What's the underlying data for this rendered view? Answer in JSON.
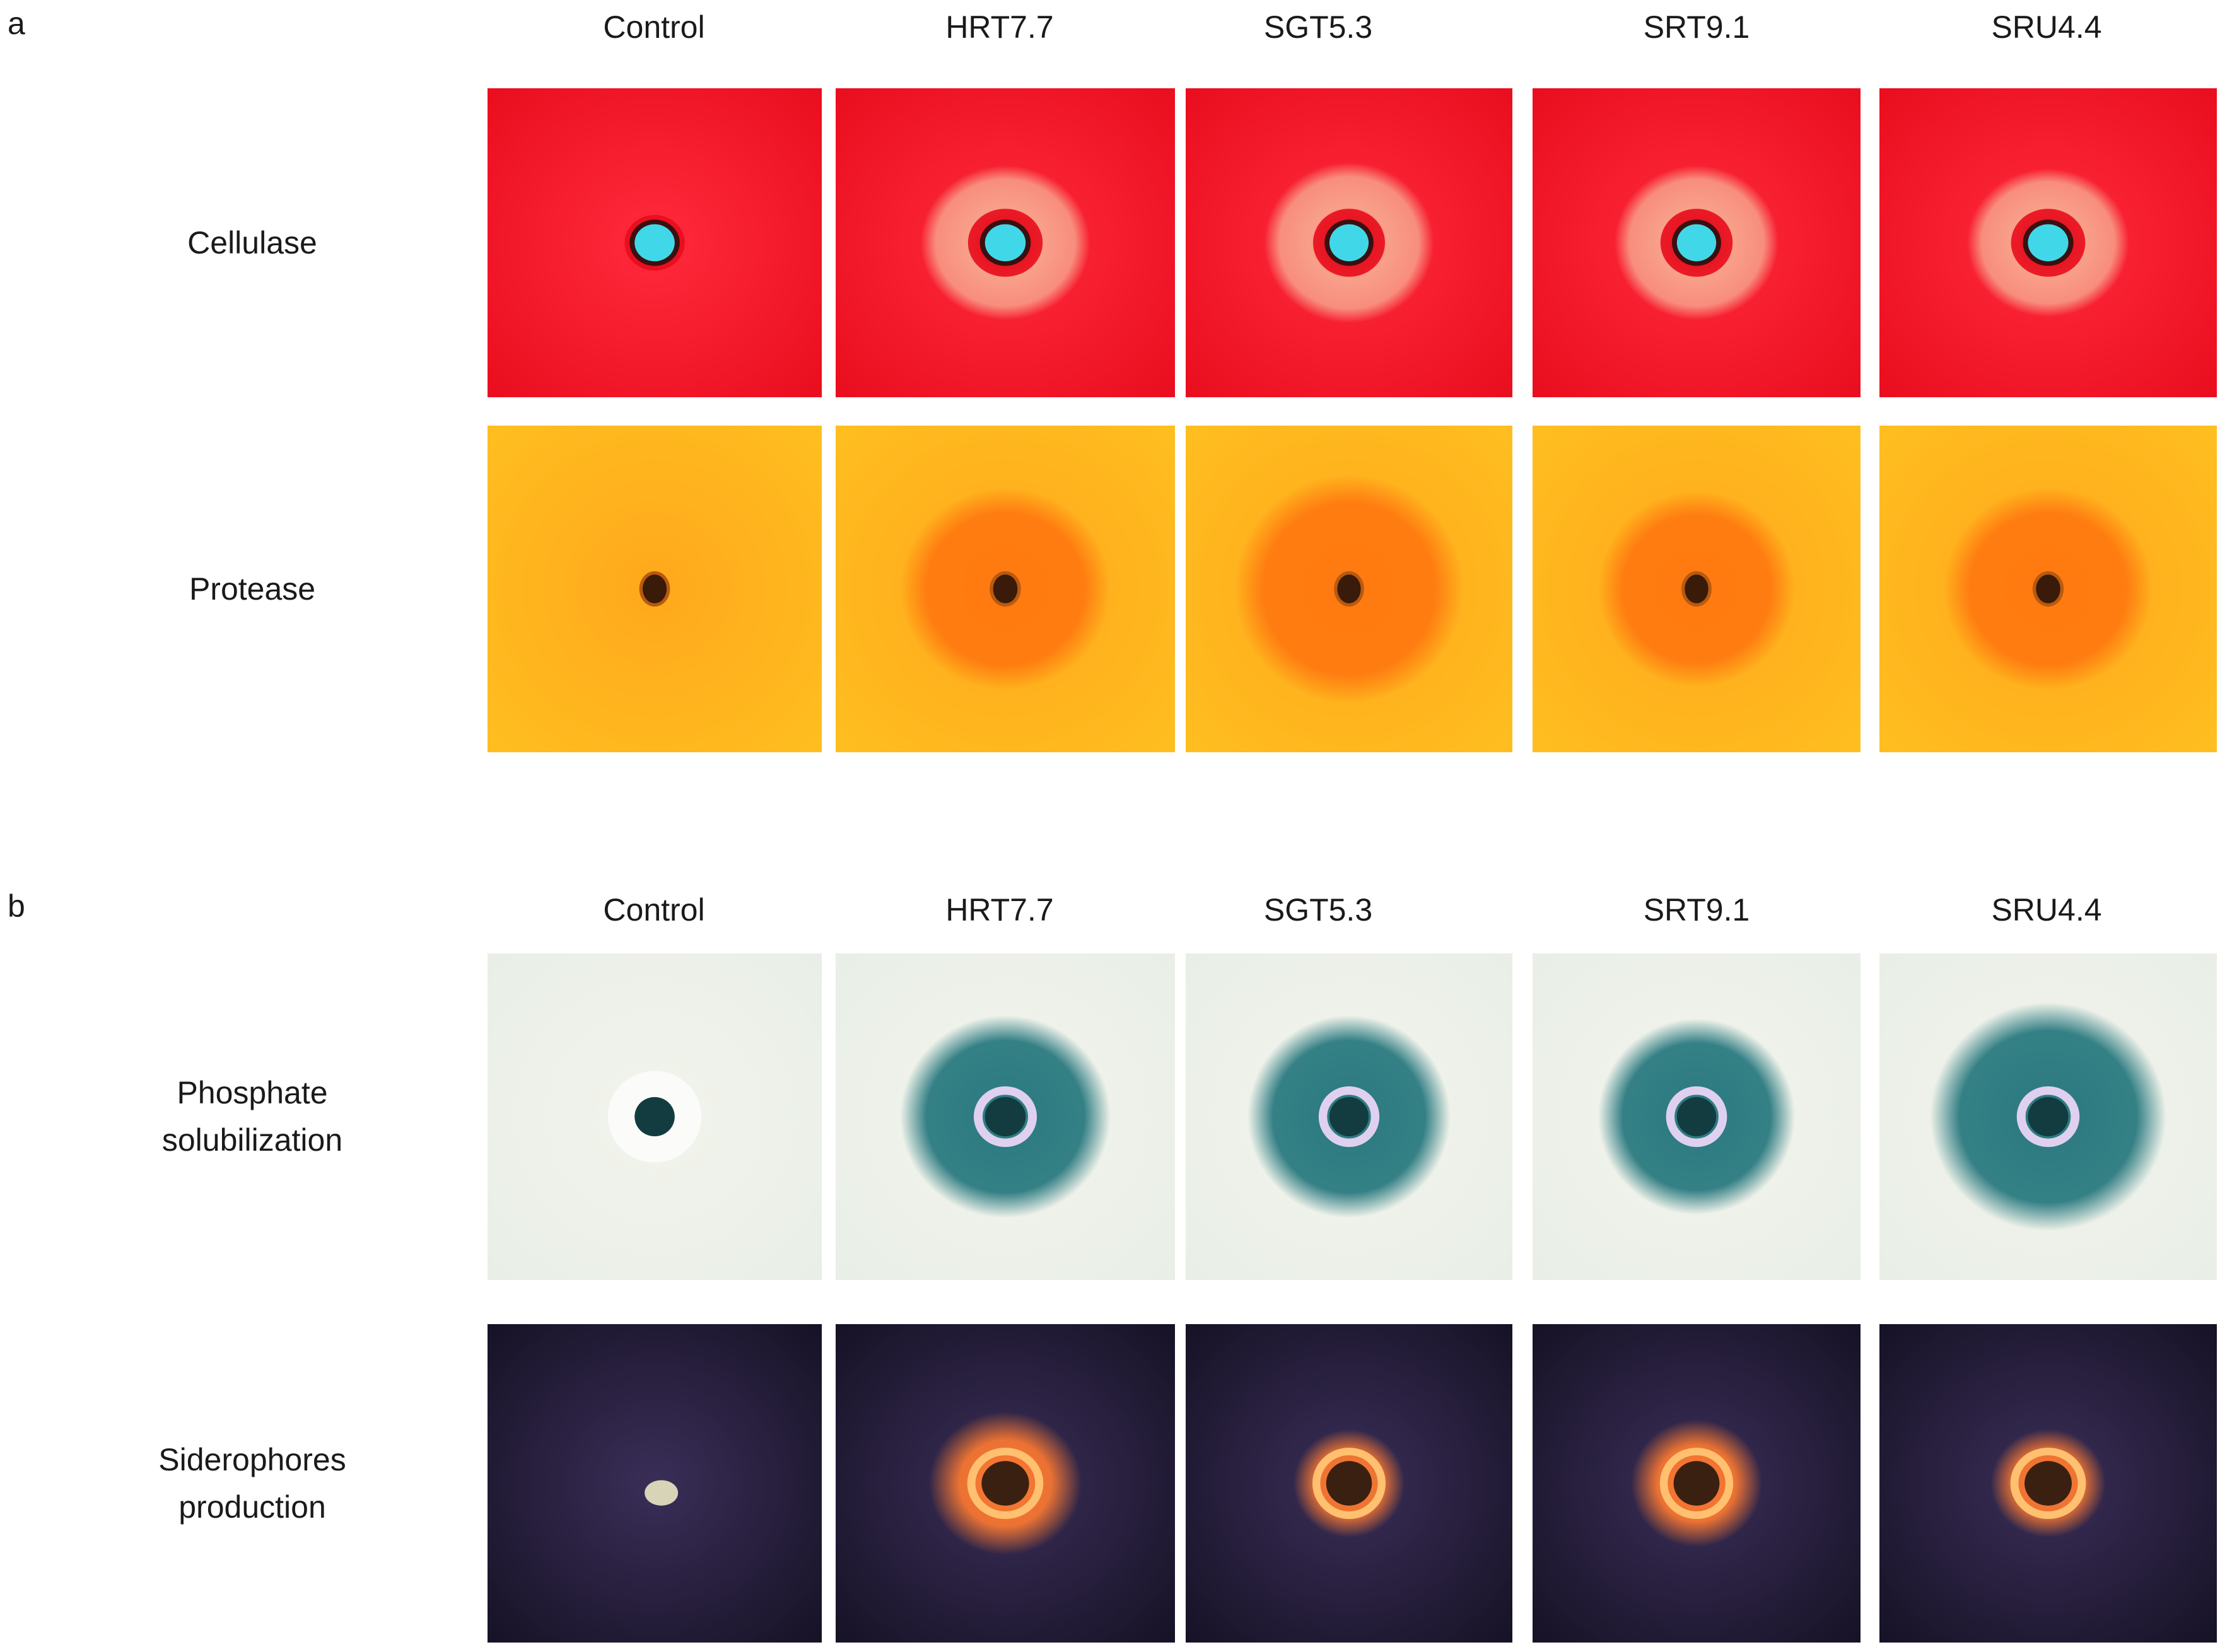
{
  "figure": {
    "panels": [
      {
        "letter": "a",
        "columns": [
          "Control",
          "HRT7.7",
          "SGT5.3",
          "SRT9.1",
          "SRU4.4"
        ],
        "rows": [
          {
            "label": [
              "Cellulase"
            ],
            "style": "cellulase",
            "colors": {
              "bg_outer": "#e80c1c",
              "bg_inner": "#ff2a3c",
              "halo": "#f8a08a",
              "hole": "#40d8e8",
              "rim": "#3a1010"
            },
            "tiles": [
              {
                "sample": "Control",
                "halo": 0.0
              },
              {
                "sample": "HRT7.7",
                "halo": 0.5
              },
              {
                "sample": "SGT5.3",
                "halo": 0.52
              },
              {
                "sample": "SRT9.1",
                "halo": 0.5
              },
              {
                "sample": "SRU4.4",
                "halo": 0.48
              }
            ]
          },
          {
            "label": [
              "Protease"
            ],
            "style": "protease",
            "colors": {
              "bg_outer": "#ffc020",
              "bg_inner": "#ffa81c",
              "halo": "#ff7a10",
              "hole": "#3a1a08",
              "rim": "#b85a10"
            },
            "tiles": [
              {
                "sample": "Control",
                "halo": 0.0
              },
              {
                "sample": "HRT7.7",
                "halo": 0.62
              },
              {
                "sample": "SGT5.3",
                "halo": 0.7
              },
              {
                "sample": "SRT9.1",
                "halo": 0.6
              },
              {
                "sample": "SRU4.4",
                "halo": 0.62
              }
            ]
          }
        ]
      },
      {
        "letter": "b",
        "columns": [
          "Control",
          "HRT7.7",
          "SGT5.3",
          "SRT9.1",
          "SRU4.4"
        ],
        "rows": [
          {
            "label": [
              "Phosphate",
              "solubilization"
            ],
            "style": "phosphate",
            "colors": {
              "bg_outer": "#e8eee6",
              "bg_inner": "#f2f4ec",
              "halo": "#2a7a80",
              "hole": "#123c40",
              "rim": "#e0d0f0"
            },
            "tiles": [
              {
                "sample": "Control",
                "halo": 0.0
              },
              {
                "sample": "HRT7.7",
                "halo": 0.62
              },
              {
                "sample": "SGT5.3",
                "halo": 0.62
              },
              {
                "sample": "SRT9.1",
                "halo": 0.6
              },
              {
                "sample": "SRU4.4",
                "halo": 0.7
              }
            ]
          },
          {
            "label": [
              "Siderophores",
              "production"
            ],
            "style": "siderophore",
            "colors": {
              "bg_outer": "#141022",
              "bg_inner": "#3a2e58",
              "halo": "#ff7a30",
              "hole": "#3a2010",
              "rim": "#ffc070"
            },
            "tiles": [
              {
                "sample": "Control",
                "halo": 0.0
              },
              {
                "sample": "HRT7.7",
                "halo": 0.45
              },
              {
                "sample": "SGT5.3",
                "halo": 0.34
              },
              {
                "sample": "SRT9.1",
                "halo": 0.4
              },
              {
                "sample": "SRU4.4",
                "halo": 0.34
              }
            ]
          }
        ]
      }
    ]
  }
}
